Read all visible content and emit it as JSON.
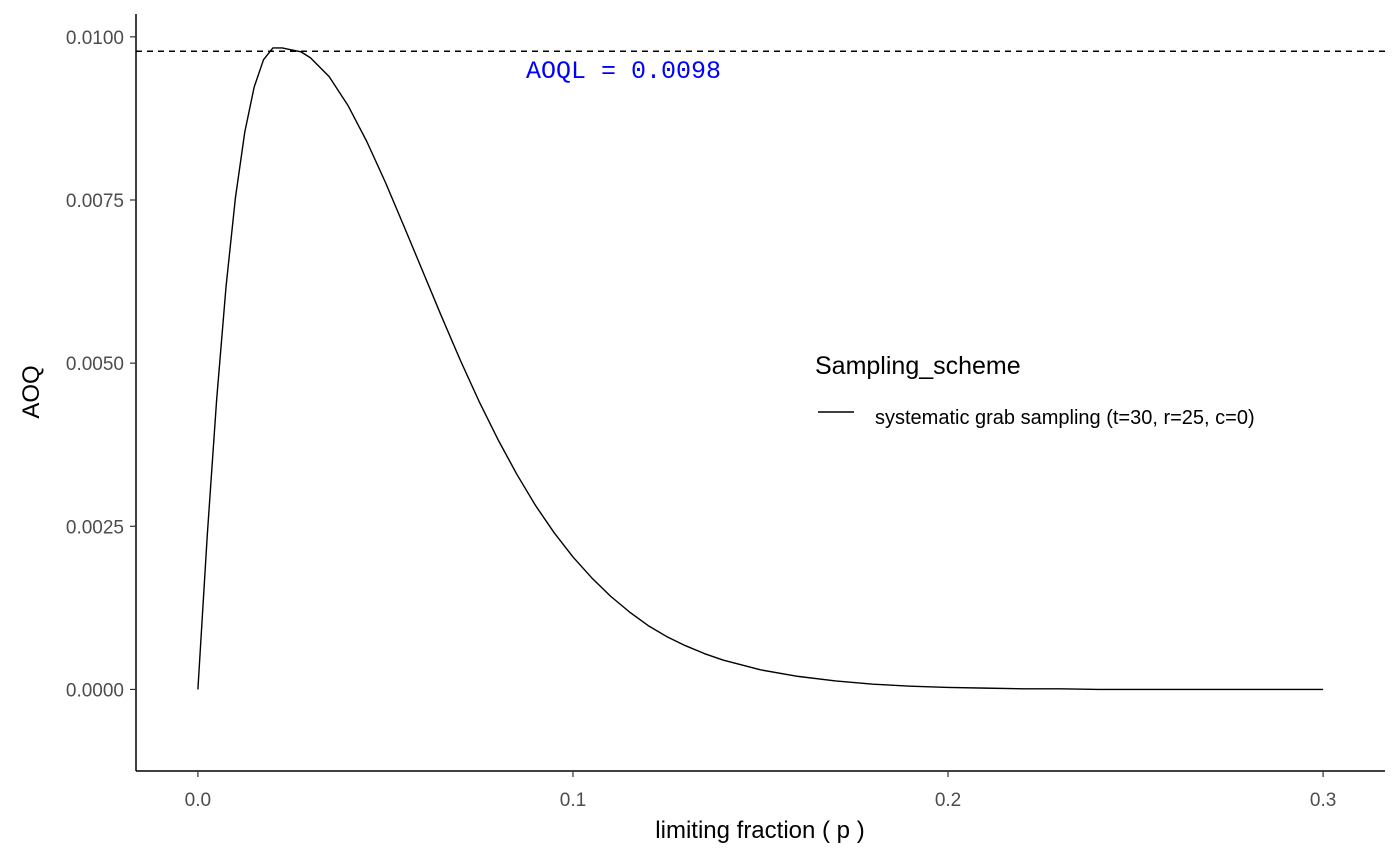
{
  "chart_data": {
    "type": "line",
    "title": "",
    "xlabel": "limiting fraction ( p )",
    "ylabel": "AOQ",
    "xlim": [
      -0.0165,
      0.3165
    ],
    "ylim": [
      -0.00125,
      0.01035
    ],
    "x_ticks": [
      {
        "value": 0.0,
        "label": "0.0"
      },
      {
        "value": 0.1,
        "label": "0.1"
      },
      {
        "value": 0.2,
        "label": "0.2"
      },
      {
        "value": 0.3,
        "label": "0.3"
      }
    ],
    "y_ticks": [
      {
        "value": 0.0,
        "label": "0.0000"
      },
      {
        "value": 0.0025,
        "label": "0.0025"
      },
      {
        "value": 0.005,
        "label": "0.0050"
      },
      {
        "value": 0.0075,
        "label": "0.0075"
      },
      {
        "value": 0.01,
        "label": "0.0100"
      }
    ],
    "series": [
      {
        "name": "systematic grab sampling (t=30, r=25, c=0)",
        "color": "#000000",
        "x": [
          0.0,
          0.0025,
          0.005,
          0.0075,
          0.01,
          0.0125,
          0.015,
          0.0175,
          0.02,
          0.0225,
          0.025,
          0.0275,
          0.03,
          0.035,
          0.04,
          0.045,
          0.05,
          0.055,
          0.06,
          0.065,
          0.07,
          0.075,
          0.08,
          0.085,
          0.09,
          0.095,
          0.1,
          0.105,
          0.11,
          0.115,
          0.12,
          0.125,
          0.13,
          0.135,
          0.14,
          0.15,
          0.16,
          0.17,
          0.18,
          0.19,
          0.2,
          0.21,
          0.22,
          0.23,
          0.24,
          0.25,
          0.26,
          0.27,
          0.28,
          0.29,
          0.3
        ],
        "y": [
          0.0,
          0.00236,
          0.00444,
          0.00617,
          0.00753,
          0.00854,
          0.00923,
          0.00965,
          0.00983,
          0.00983,
          0.0098,
          0.00977,
          0.00968,
          0.00939,
          0.00895,
          0.0084,
          0.00777,
          0.00709,
          0.0064,
          0.00571,
          0.00504,
          0.00441,
          0.00383,
          0.0033,
          0.00282,
          0.0024,
          0.00203,
          0.00171,
          0.00143,
          0.00119,
          0.00098,
          0.00081,
          0.00067,
          0.00055,
          0.00045,
          0.0003,
          0.0002,
          0.00013,
          8e-05,
          5e-05,
          3e-05,
          2e-05,
          1e-05,
          1e-05,
          0.0,
          0.0,
          0.0,
          0.0,
          0.0,
          0.0,
          0.0
        ]
      }
    ],
    "reference_line": {
      "y": 0.00978,
      "style": "dashed",
      "color": "#000000"
    },
    "annotation": {
      "text": "AOQL = 0.0098",
      "color": "#0000ff",
      "x": 0.1,
      "y": 0.0094
    },
    "legend": {
      "title": "Sampling_scheme",
      "placement": "right",
      "label": "systematic grab sampling (t=30, r=25, c=0)"
    },
    "grid": false
  }
}
